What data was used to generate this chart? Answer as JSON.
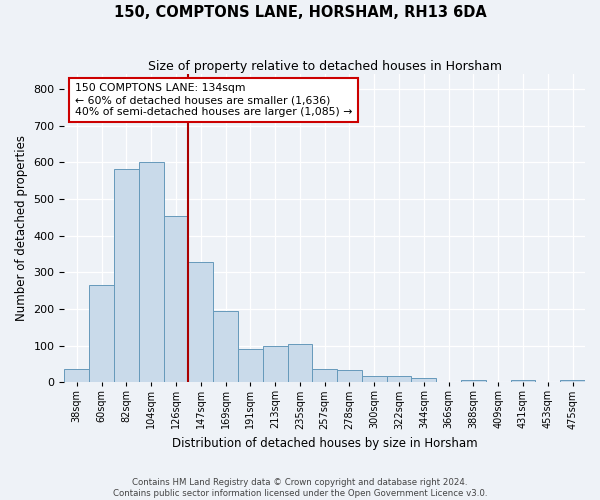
{
  "title": "150, COMPTONS LANE, HORSHAM, RH13 6DA",
  "subtitle": "Size of property relative to detached houses in Horsham",
  "xlabel": "Distribution of detached houses by size in Horsham",
  "ylabel": "Number of detached properties",
  "footer_line1": "Contains HM Land Registry data © Crown copyright and database right 2024.",
  "footer_line2": "Contains public sector information licensed under the Open Government Licence v3.0.",
  "bar_labels": [
    "38sqm",
    "60sqm",
    "82sqm",
    "104sqm",
    "126sqm",
    "147sqm",
    "169sqm",
    "191sqm",
    "213sqm",
    "235sqm",
    "257sqm",
    "278sqm",
    "300sqm",
    "322sqm",
    "344sqm",
    "366sqm",
    "388sqm",
    "409sqm",
    "431sqm",
    "453sqm",
    "475sqm"
  ],
  "bar_heights": [
    36,
    265,
    582,
    600,
    453,
    328,
    195,
    90,
    100,
    104,
    36,
    33,
    16,
    16,
    12,
    0,
    6,
    0,
    6,
    0,
    7
  ],
  "bar_color": "#c9daea",
  "bar_edge_color": "#6699bb",
  "vline_color": "#aa0000",
  "vline_index": 4,
  "annotation_text": "150 COMPTONS LANE: 134sqm\n← 60% of detached houses are smaller (1,636)\n40% of semi-detached houses are larger (1,085) →",
  "annotation_box_edgecolor": "#cc0000",
  "ylim": [
    0,
    840
  ],
  "yticks": [
    0,
    100,
    200,
    300,
    400,
    500,
    600,
    700,
    800
  ],
  "background_color": "#eef2f7",
  "grid_color": "#ffffff",
  "figsize": [
    6.0,
    5.0
  ],
  "dpi": 100
}
